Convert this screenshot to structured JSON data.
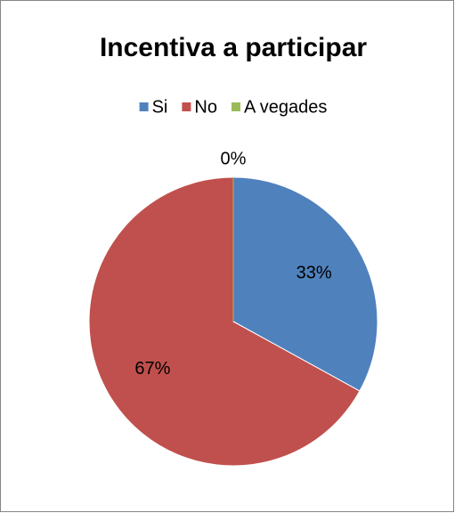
{
  "chart_data": {
    "type": "pie",
    "title": "Incentiva a participar",
    "categories": [
      "Si",
      "No",
      "A vegades"
    ],
    "values": [
      33,
      67,
      0
    ],
    "value_labels": [
      "33%",
      "67%",
      "0%"
    ],
    "colors": [
      "#4f81bd",
      "#c0504d",
      "#9bbb59"
    ],
    "legend": "top"
  }
}
